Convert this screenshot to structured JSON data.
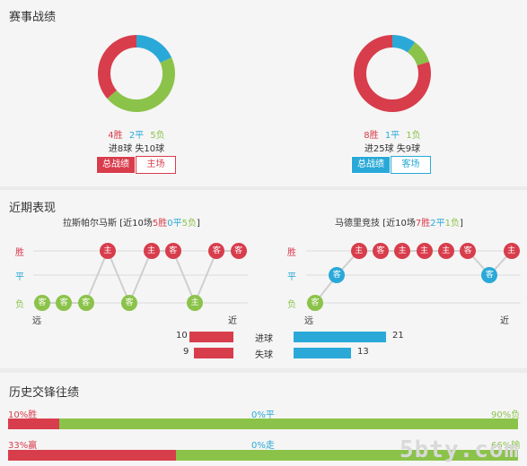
{
  "sections": {
    "overall": "赛事战绩",
    "recent": "近期表现",
    "history": "历史交锋往绩"
  },
  "colors": {
    "win": "#d83d4c",
    "draw": "#2aa9d8",
    "loss": "#8bc34a"
  },
  "left_team": {
    "wins": "4胜",
    "draws": "2平",
    "losses": "5负",
    "goals": "进8球 失10球",
    "win_count": 4,
    "draw_count": 2,
    "loss_count": 5,
    "tab_total": "总战绩",
    "tab_venue": "主场"
  },
  "right_team": {
    "wins": "8胜",
    "draws": "1平",
    "losses": "1负",
    "goals": "进25球 失9球",
    "win_count": 8,
    "draw_count": 1,
    "loss_count": 1,
    "tab_total": "总战绩",
    "tab_venue": "客场"
  },
  "recent": {
    "left": {
      "name": "拉斯帕尔马斯",
      "pre": "[近10场",
      "w": "5胜",
      "d": "0平",
      "l": "5负",
      "post": "]",
      "results": [
        "L",
        "L",
        "L",
        "W",
        "L",
        "W",
        "W",
        "L",
        "W",
        "W"
      ],
      "venues": [
        "客",
        "客",
        "客",
        "主",
        "客",
        "主",
        "客",
        "主",
        "客",
        "客"
      ]
    },
    "right": {
      "name": "马德里竞技",
      "pre": "[近10场",
      "w": "7胜",
      "d": "2平",
      "l": "1负",
      "post": "]",
      "results": [
        "L",
        "D",
        "W",
        "W",
        "W",
        "W",
        "W",
        "W",
        "D",
        "W"
      ],
      "venues": [
        "客",
        "客",
        "主",
        "客",
        "主",
        "主",
        "主",
        "客",
        "客",
        "主"
      ]
    },
    "row_win": "胜",
    "row_draw": "平",
    "row_loss": "负",
    "far": "远",
    "near": "近",
    "goals_for_label": "进球",
    "goals_against_label": "失球",
    "left_for": 10,
    "left_against": 9,
    "right_for": 21,
    "right_against": 13
  },
  "history": {
    "row1_left": "10%胜",
    "row1_mid": "0%平",
    "row1_right": "90%负",
    "row1_win_pct": 10,
    "row2_left": "33%赢",
    "row2_mid": "0%走",
    "row2_right": "66%输",
    "row2_win_pct": 33
  },
  "watermark": "5bty.com"
}
